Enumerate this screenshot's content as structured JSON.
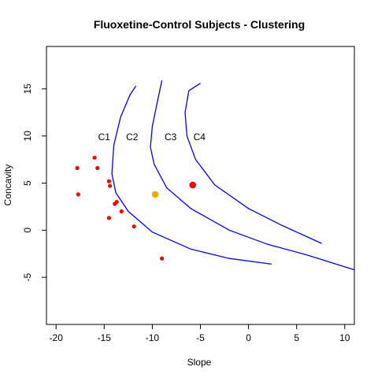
{
  "chart_data": {
    "type": "scatter",
    "title": "Fluoxetine-Control Subjects - Clustering",
    "xlabel": "Slope",
    "ylabel": "Concavity",
    "xlim": [
      -21,
      11
    ],
    "ylim": [
      -10,
      19.5
    ],
    "xticks": [
      -20,
      -15,
      -10,
      -5,
      0,
      5,
      10
    ],
    "yticks": [
      -5,
      0,
      5,
      10,
      15
    ],
    "grid": false,
    "colors": {
      "points": "#ff0000",
      "highlight_orange": "#ffa500",
      "highlight_red": "#ff0000",
      "boundaries": "#0000ff",
      "axes": "#000000"
    },
    "points": [
      {
        "x": -17.8,
        "y": 6.6
      },
      {
        "x": -17.7,
        "y": 3.8
      },
      {
        "x": -16.0,
        "y": 7.7
      },
      {
        "x": -15.7,
        "y": 6.6
      },
      {
        "x": -14.5,
        "y": 5.2
      },
      {
        "x": -14.4,
        "y": 4.7
      },
      {
        "x": -13.9,
        "y": 2.8
      },
      {
        "x": -13.7,
        "y": 3.0
      },
      {
        "x": -13.2,
        "y": 2.0
      },
      {
        "x": -14.5,
        "y": 1.3
      },
      {
        "x": -11.9,
        "y": 0.4
      },
      {
        "x": -9.0,
        "y": -3.0
      }
    ],
    "highlight_points": [
      {
        "x": -9.7,
        "y": 3.8,
        "color": "#ffa500"
      },
      {
        "x": -5.8,
        "y": 4.8,
        "color": "#ff0000"
      }
    ],
    "boundaries": [
      [
        [
          -11.7,
          15.3
        ],
        [
          -12.3,
          14.4
        ],
        [
          -13.3,
          12.0
        ],
        [
          -14.0,
          9.0
        ],
        [
          -14.2,
          6.0
        ],
        [
          -13.8,
          4.0
        ],
        [
          -12.5,
          2.0
        ],
        [
          -10.0,
          -0.2
        ],
        [
          -6.0,
          -2.0
        ],
        [
          -2.0,
          -3.0
        ],
        [
          2.4,
          -3.6
        ]
      ],
      [
        [
          -9.0,
          15.9
        ],
        [
          -9.5,
          13.5
        ],
        [
          -10.0,
          11.0
        ],
        [
          -10.2,
          8.8
        ],
        [
          -9.8,
          7.0
        ],
        [
          -8.5,
          4.5
        ],
        [
          -6.0,
          2.3
        ],
        [
          -2.0,
          0.0
        ],
        [
          2.0,
          -1.5
        ],
        [
          6.0,
          -2.6
        ],
        [
          11.0,
          -4.2
        ]
      ],
      [
        [
          -5.0,
          15.6
        ],
        [
          -6.2,
          14.8
        ],
        [
          -6.6,
          12.5
        ],
        [
          -6.4,
          10.0
        ],
        [
          -5.5,
          7.5
        ],
        [
          -3.5,
          4.8
        ],
        [
          0.0,
          2.3
        ],
        [
          3.5,
          0.5
        ],
        [
          7.6,
          -1.4
        ]
      ]
    ],
    "cluster_labels": [
      {
        "text": "C1",
        "x": -15.0,
        "y": 9.9
      },
      {
        "text": "C2",
        "x": -12.1,
        "y": 9.9
      },
      {
        "text": "C3",
        "x": -8.1,
        "y": 9.9
      },
      {
        "text": "C4",
        "x": -5.1,
        "y": 9.9
      }
    ]
  }
}
